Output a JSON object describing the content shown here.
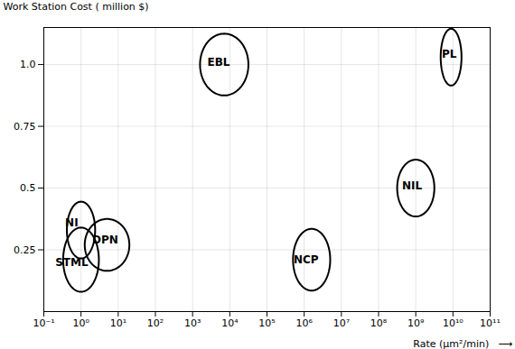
{
  "chart_data": {
    "type": "ellipse",
    "xlabel": "Rate (μm²/min)   ⟶",
    "ylabel": "Work Station Cost ( million $)",
    "log": "x",
    "xlim": [
      0.1,
      100000000000
    ],
    "xticks": [
      {
        "value": 0.1,
        "label": "10⁻¹"
      },
      {
        "value": 1,
        "label": "10⁰"
      },
      {
        "value": 10,
        "label": "10¹"
      },
      {
        "value": 100,
        "label": "10²"
      },
      {
        "value": 1000,
        "label": "10³"
      },
      {
        "value": 10000,
        "label": "10⁴"
      },
      {
        "value": 100000,
        "label": "10⁵"
      },
      {
        "value": 1000000,
        "label": "10⁶"
      },
      {
        "value": 10000000,
        "label": "10⁷"
      },
      {
        "value": 100000000,
        "label": "10⁸"
      },
      {
        "value": 1000000000,
        "label": "10⁹"
      },
      {
        "value": 10000000000,
        "label": "10¹⁰"
      },
      {
        "value": 100000000000,
        "label": "10¹¹"
      }
    ],
    "ylim": [
      0,
      1.15
    ],
    "yticks": [
      0.25,
      0.5,
      0.75,
      {
        "value": 1,
        "label": "1.0"
      }
    ],
    "grid": true,
    "ellipses": [
      {
        "label": "NI",
        "x": [
          0.416869,
          2.398833
        ],
        "y": [
          0.215,
          0.445
        ],
        "label_x": 0.562341,
        "label_y": 0.36
      },
      {
        "label": "STML",
        "x": [
          0.331131,
          3.019952
        ],
        "y": [
          0.08,
          0.34
        ],
        "label_x": 0.562341,
        "label_y": 0.2
      },
      {
        "label": "DPN",
        "x": [
          1.258925,
          19.952623
        ],
        "y": [
          0.165,
          0.375
        ],
        "label_x": 4.466836,
        "label_y": 0.29
      },
      {
        "label": "EBL",
        "x": [
          1584.893192,
          31622.776602
        ],
        "y": [
          0.875,
          1.125
        ],
        "label_x": 5011.872336,
        "label_y": 1.01
      },
      {
        "label": "NCP",
        "x": [
          501187.233627,
          5011872.336273
        ],
        "y": [
          0.085,
          0.335
        ],
        "label_x": 1122018.454302,
        "label_y": 0.21
      },
      {
        "label": "NIL",
        "x": [
          316227766.016838,
          3162277660.168379
        ],
        "y": [
          0.385,
          0.615
        ],
        "label_x": 794328234.724282,
        "label_y": 0.51
      },
      {
        "label": "PL",
        "x": [
          4677351412.871981,
          16982436524.617443
        ],
        "y": [
          0.915,
          1.145
        ],
        "label_x": 7943282347.242815,
        "label_y": 1.04
      }
    ]
  }
}
